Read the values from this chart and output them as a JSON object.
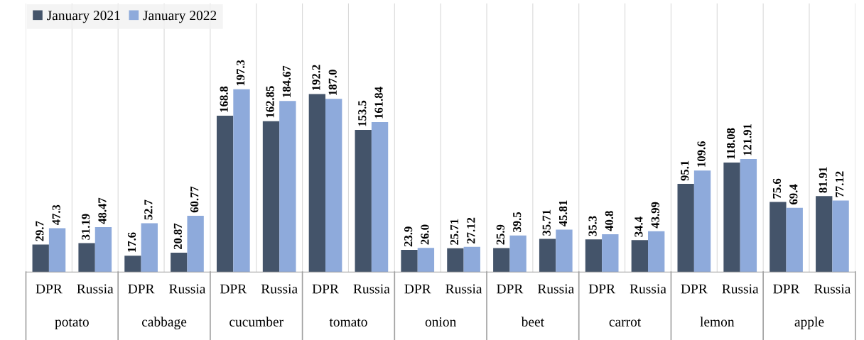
{
  "chart_data": {
    "type": "bar",
    "categories": [
      "DPR",
      "Russia",
      "DPR",
      "Russia",
      "DPR",
      "Russia",
      "DPR",
      "Russia",
      "DPR",
      "Russia",
      "DPR",
      "Russia",
      "DPR",
      "Russia",
      "DPR",
      "Russia",
      "DPR",
      "Russia"
    ],
    "annotations": [
      "potato",
      "cabbage",
      "cucumber",
      "tomato",
      "onion",
      "beet",
      "carrot",
      "lemon",
      "apple"
    ],
    "series": [
      {
        "name": "January 2021",
        "color": "#44546a",
        "values": [
          29.7,
          31.19,
          17.6,
          20.87,
          168.8,
          162.85,
          192.2,
          153.5,
          23.9,
          25.71,
          25.9,
          35.71,
          35.3,
          34.4,
          95.1,
          118.08,
          75.6,
          81.91
        ],
        "value_labels": [
          "29.7",
          "31.19",
          "17.6",
          "20.87",
          "168.8",
          "162.85",
          "192.2",
          "153.5",
          "23.9",
          "25.71",
          "25.9",
          "35.71",
          "35.3",
          "34.4",
          "95.1",
          "118.08",
          "75.6",
          "81.91"
        ]
      },
      {
        "name": "January 2022",
        "color": "#8eaadb",
        "values": [
          47.3,
          48.47,
          52.7,
          60.77,
          197.3,
          184.67,
          187.0,
          161.84,
          26.0,
          27.12,
          39.5,
          45.81,
          40.8,
          43.99,
          109.6,
          121.91,
          69.4,
          77.12
        ],
        "value_labels": [
          "47.3",
          "48.47",
          "52.7",
          "60.77",
          "197.3",
          "184.67",
          "187.0",
          "161.84",
          "26.0",
          "27.12",
          "39.5",
          "45.81",
          "40.8",
          "43.99",
          "109.6",
          "121.91",
          "69.4",
          "77.12"
        ]
      }
    ],
    "ylim": [
      0,
      290
    ],
    "grid": "x",
    "legend": "top left",
    "tick_labels": "x"
  }
}
